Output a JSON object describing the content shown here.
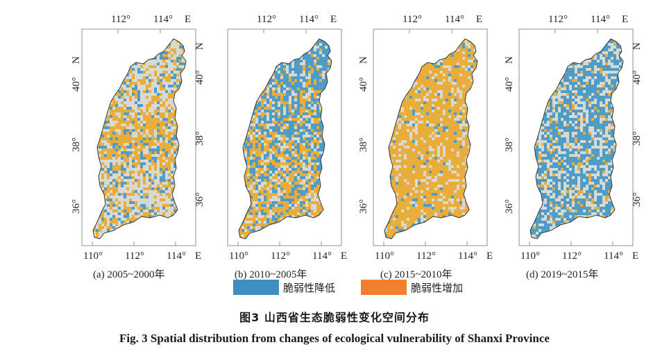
{
  "panels": [
    {
      "caption": "(a) 2005~2000年",
      "scheme": "mixed"
    },
    {
      "caption": "(b) 2010~2005年",
      "scheme": "decrease-north"
    },
    {
      "caption": "(c) 2015~2010年",
      "scheme": "increase"
    },
    {
      "caption": "(d) 2019~2015年",
      "scheme": "decrease"
    }
  ],
  "axis_labels": {
    "top_left": "112°",
    "top_right": "114°",
    "east": "E",
    "north": "N",
    "lat_40": "40°",
    "lat_38": "38°",
    "lat_36": "36°",
    "bottom_110": "110°",
    "bottom_112": "112°",
    "bottom_114": "114°"
  },
  "legend": [
    {
      "label": "脆弱性降低",
      "color": "#3d8fc0"
    },
    {
      "label": "脆弱性增加",
      "color": "#f08030"
    }
  ],
  "colors": {
    "decrease": "#4f9cc7",
    "increase": "#e9ad3c",
    "neutral": "#d9d9d4",
    "border": "#333333"
  },
  "figure_title_cn": "图3    山西省生态脆弱性变化空间分布",
  "figure_title_en": "Fig. 3    Spatial distribution from changes of ecological vulnerability of Shanxi Province"
}
